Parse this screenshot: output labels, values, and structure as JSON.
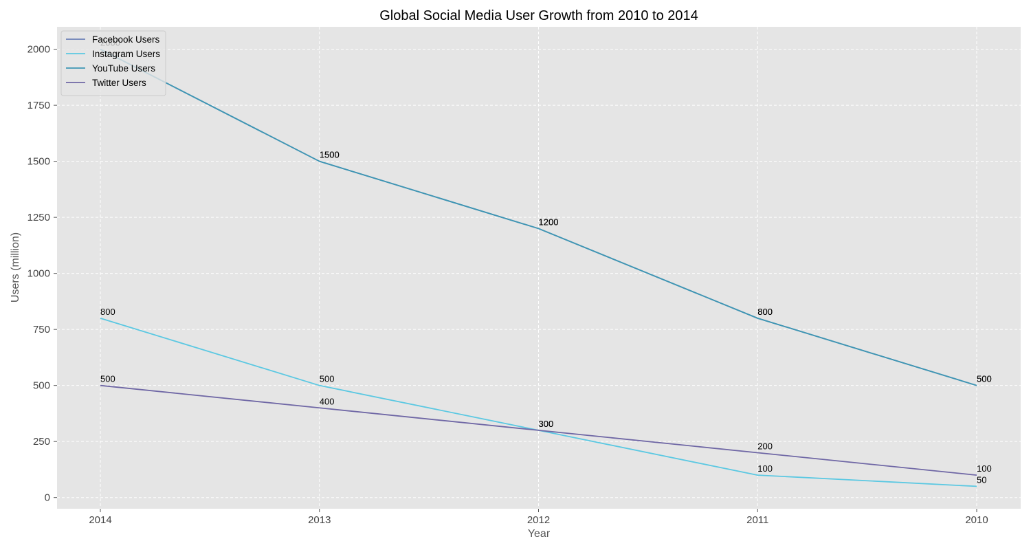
{
  "chart_data": {
    "type": "line",
    "title": "Global Social Media User Growth from 2010 to 2014",
    "xlabel": "Year",
    "ylabel": "Users (million)",
    "categories": [
      "2014",
      "2013",
      "2012",
      "2011",
      "2010"
    ],
    "ylim": [
      -50,
      2100
    ],
    "yticks": [
      0,
      250,
      500,
      750,
      1000,
      1250,
      1500,
      1750,
      2000
    ],
    "grid": true,
    "legend_position": "top-left",
    "series": [
      {
        "name": "Facebook Users",
        "color": "#6a7fb6",
        "values": [
          2000,
          1500,
          1200,
          800,
          500
        ]
      },
      {
        "name": "Instagram Users",
        "color": "#5bc8e2",
        "values": [
          800,
          500,
          300,
          100,
          50
        ]
      },
      {
        "name": "YouTube Users",
        "color": "#3d96b3",
        "values": [
          2000,
          1500,
          1200,
          800,
          500
        ]
      },
      {
        "name": "Twitter Users",
        "color": "#6f67a5",
        "values": [
          500,
          400,
          300,
          200,
          100
        ]
      }
    ]
  }
}
